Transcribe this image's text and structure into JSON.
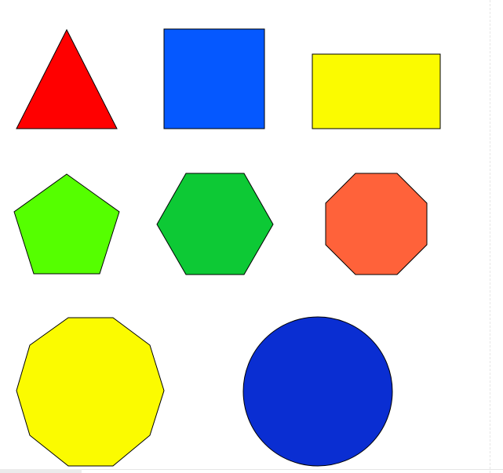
{
  "canvas": {
    "background": "#ffffff"
  },
  "shapes": {
    "triangle": {
      "fill": "#ff0000",
      "stroke": "#000000"
    },
    "square": {
      "fill": "#0558ff",
      "stroke": "#000000"
    },
    "rectangle": {
      "fill": "#fbfb00",
      "stroke": "#000000"
    },
    "pentagon": {
      "fill": "#55ff00",
      "stroke": "#000000"
    },
    "hexagon": {
      "fill": "#0dc935",
      "stroke": "#000000"
    },
    "octagon": {
      "fill": "#ff623a",
      "stroke": "#000000"
    },
    "decagon": {
      "fill": "#fbfb00",
      "stroke": "#000000"
    },
    "circle": {
      "fill": "#0a2ed2",
      "stroke": "#000000"
    }
  }
}
